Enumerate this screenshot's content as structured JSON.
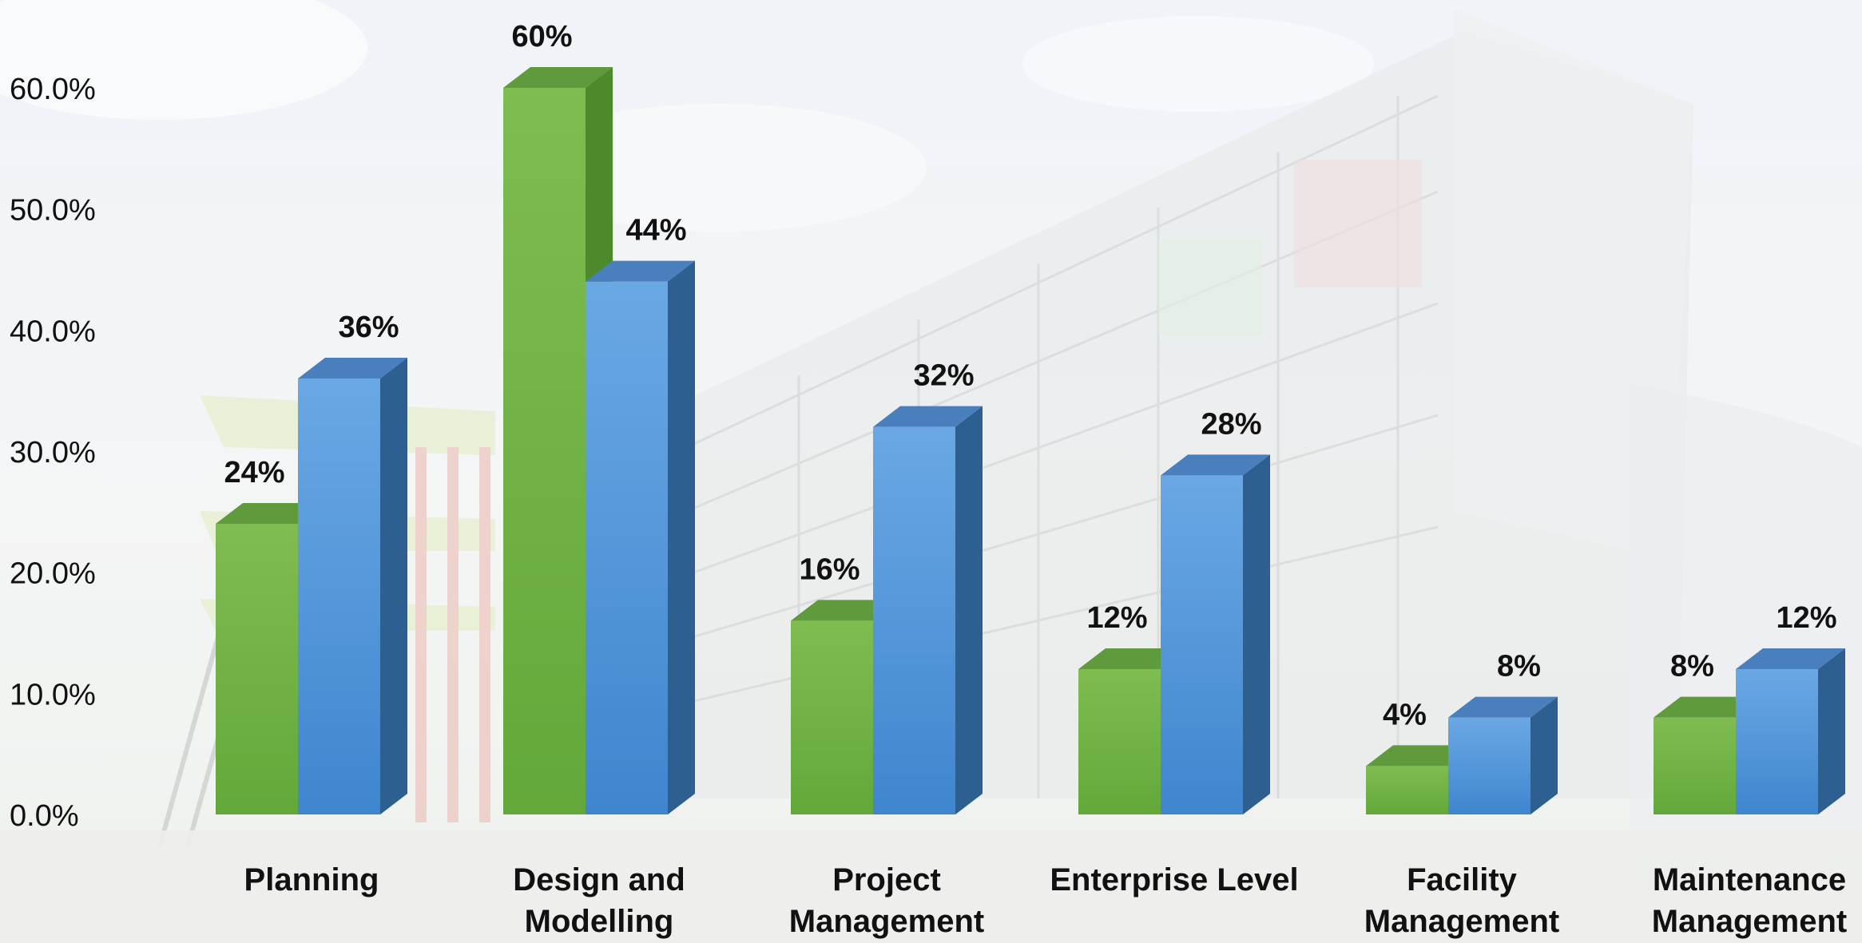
{
  "colors": {
    "series_green": "#6aaa3a",
    "series_blue": "#4a8fd6",
    "text": "#111111",
    "sky": "#dde6ef"
  },
  "chart_data": {
    "type": "bar",
    "categories": [
      [
        "Planning"
      ],
      [
        "Design and",
        "Modelling"
      ],
      [
        "Project",
        "Management"
      ],
      [
        "Enterprise Level"
      ],
      [
        "Facility",
        "Management"
      ],
      [
        "Maintenance",
        "Management"
      ]
    ],
    "series": [
      {
        "values": [
          24,
          60,
          16,
          12,
          4,
          8
        ],
        "labels": [
          "24%",
          "60%",
          "16%",
          "12%",
          "4%",
          "8%"
        ]
      },
      {
        "values": [
          36,
          44,
          32,
          28,
          8,
          12
        ],
        "labels": [
          "36%",
          "44%",
          "32%",
          "28%",
          "8%",
          "12%"
        ]
      }
    ],
    "ylim": [
      0,
      60
    ],
    "yticks": [
      "0.0%",
      "10.0%",
      "20.0%",
      "30.0%",
      "40.0%",
      "50.0%",
      "60.0%"
    ],
    "three_d": true,
    "gridlines": false,
    "background_image": "construction site photo (building frame, faded)"
  }
}
